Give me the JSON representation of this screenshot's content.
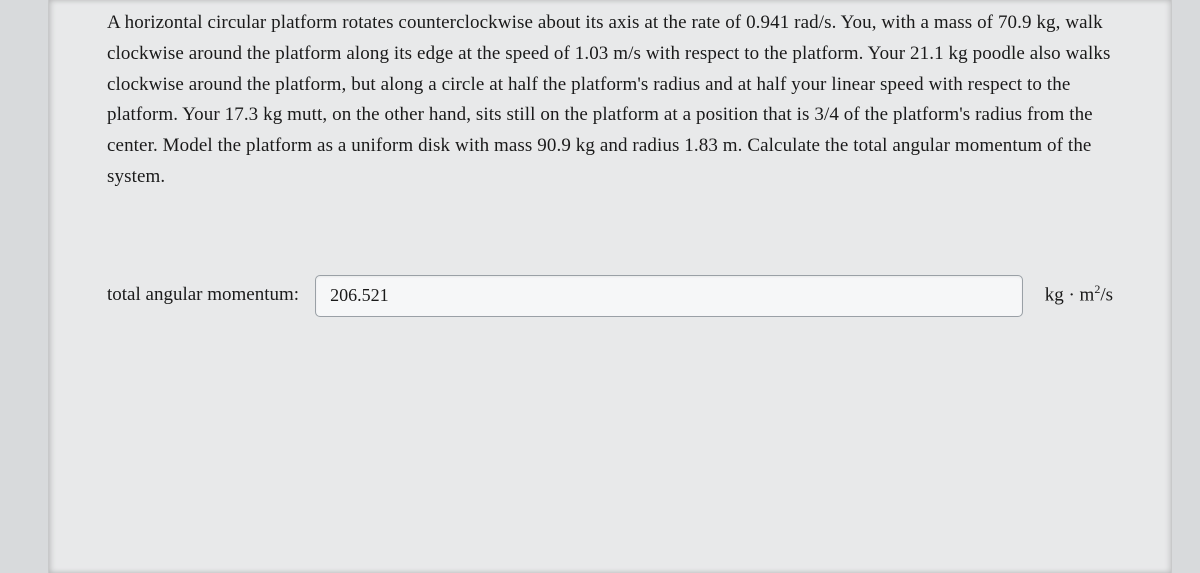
{
  "problem": {
    "text": "A horizontal circular platform rotates counterclockwise about its axis at the rate of 0.941 rad/s. You, with a mass of 70.9 kg, walk clockwise around the platform along its edge at the speed of 1.03 m/s with respect to the platform. Your 21.1 kg poodle also walks clockwise around the platform, but along a circle at half the platform's radius and at half your linear speed with respect to the platform. Your 17.3 kg mutt, on the other hand, sits still on the platform at a position that is 3/4 of the platform's radius from the center. Model the platform as a uniform disk with mass 90.9 kg and radius 1.83 m. Calculate the total angular momentum of the system."
  },
  "answer": {
    "label": "total angular momentum:",
    "value": "206.521",
    "unit_prefix": "kg · m",
    "unit_exp": "2",
    "unit_suffix": "/s"
  },
  "style": {
    "background_color": "#e8e9ea",
    "page_bg": "#d8dadc",
    "text_color": "#1a1a1a",
    "input_border": "#9aa0a6",
    "input_bg": "#f6f7f8",
    "font_family": "Georgia",
    "body_fontsize": 19,
    "line_height": 1.62
  }
}
